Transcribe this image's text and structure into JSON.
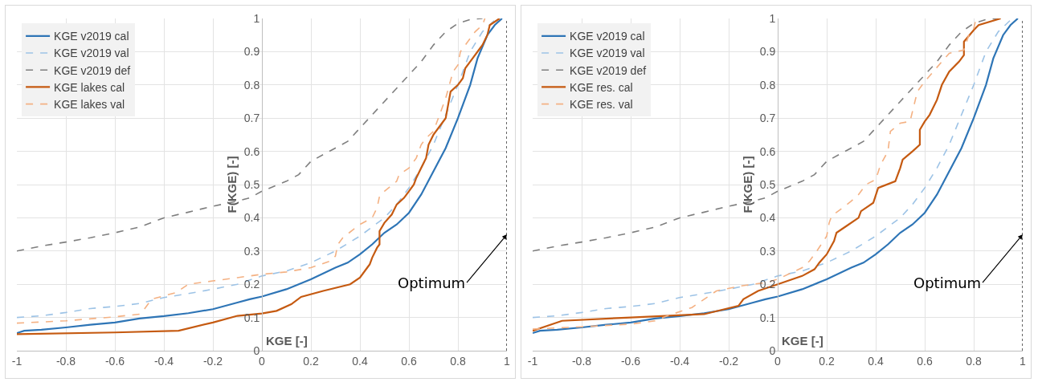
{
  "chart_data": [
    {
      "type": "line",
      "xlabel": "KGE [-]",
      "ylabel": "F(KGE) [-]",
      "xlim": [
        -1,
        1
      ],
      "ylim": [
        0,
        1
      ],
      "xticks": [
        -1,
        -0.8,
        -0.6,
        -0.4,
        -0.2,
        0,
        0.2,
        0.4,
        0.6,
        0.8,
        1
      ],
      "yticks": [
        0,
        0.1,
        0.2,
        0.3,
        0.4,
        0.5,
        0.6,
        0.7,
        0.8,
        0.9,
        1
      ],
      "grid": true,
      "legend": "top left",
      "marker": "none",
      "ref_lines": [
        {
          "axis": "x",
          "value": 1,
          "color": "#000000",
          "line_style": "dotted"
        }
      ],
      "annotations": [
        {
          "text": "Optimum",
          "x": 1,
          "y": 0.35
        }
      ],
      "series": [
        {
          "name": "KGE v2019 cal",
          "color": "#2e75b6",
          "line_style": "solid",
          "x": [
            -1,
            -0.97,
            -0.9,
            -0.8,
            -0.7,
            -0.6,
            -0.5,
            -0.4,
            -0.3,
            -0.2,
            -0.1,
            -0.05,
            0,
            0.1,
            0.2,
            0.3,
            0.35,
            0.4,
            0.45,
            0.5,
            0.55,
            0.6,
            0.65,
            0.7,
            0.75,
            0.8,
            0.85,
            0.88,
            0.92,
            0.95,
            0.98
          ],
          "values": [
            0.053,
            0.06,
            0.063,
            0.07,
            0.078,
            0.085,
            0.097,
            0.104,
            0.113,
            0.125,
            0.145,
            0.155,
            0.163,
            0.185,
            0.215,
            0.25,
            0.265,
            0.29,
            0.32,
            0.355,
            0.38,
            0.415,
            0.47,
            0.54,
            0.61,
            0.7,
            0.8,
            0.88,
            0.95,
            0.98,
            1
          ]
        },
        {
          "name": "KGE v2019 val",
          "color": "#9dc3e6",
          "line_style": "dashed",
          "x": [
            -1,
            -0.9,
            -0.8,
            -0.7,
            -0.6,
            -0.5,
            -0.4,
            -0.3,
            -0.2,
            -0.1,
            0,
            0.1,
            0.2,
            0.3,
            0.4,
            0.5,
            0.55,
            0.6,
            0.65,
            0.7,
            0.75,
            0.8,
            0.85,
            0.9,
            0.95,
            0.97
          ],
          "values": [
            0.1,
            0.105,
            0.115,
            0.127,
            0.133,
            0.142,
            0.16,
            0.172,
            0.185,
            0.2,
            0.225,
            0.24,
            0.265,
            0.3,
            0.345,
            0.4,
            0.44,
            0.49,
            0.55,
            0.62,
            0.71,
            0.8,
            0.9,
            0.96,
            0.995,
            1
          ]
        },
        {
          "name": "KGE v2019 def",
          "color": "#7f7f7f",
          "line_style": "dashed",
          "x": [
            -1,
            -0.9,
            -0.8,
            -0.7,
            -0.6,
            -0.5,
            -0.4,
            -0.3,
            -0.2,
            -0.1,
            -0.05,
            0,
            0.1,
            0.15,
            0.2,
            0.3,
            0.35,
            0.4,
            0.45,
            0.5,
            0.55,
            0.6,
            0.65,
            0.7,
            0.75,
            0.8,
            0.85,
            0.9
          ],
          "values": [
            0.3,
            0.315,
            0.327,
            0.34,
            0.355,
            0.372,
            0.4,
            0.417,
            0.435,
            0.45,
            0.46,
            0.48,
            0.51,
            0.53,
            0.57,
            0.61,
            0.63,
            0.67,
            0.71,
            0.75,
            0.79,
            0.83,
            0.87,
            0.92,
            0.96,
            0.985,
            0.997,
            1
          ]
        },
        {
          "name": "KGE lakes cal",
          "color": "#c55a11",
          "line_style": "solid",
          "x": [
            -1,
            -0.6,
            -0.34,
            -0.2,
            -0.1,
            0,
            0.06,
            0.12,
            0.16,
            0.25,
            0.36,
            0.4,
            0.43,
            0.44,
            0.45,
            0.47,
            0.48,
            0.48,
            0.5,
            0.53,
            0.55,
            0.58,
            0.6,
            0.62,
            0.63,
            0.65,
            0.67,
            0.68,
            0.7,
            0.73,
            0.75,
            0.77,
            0.8,
            0.82,
            0.83,
            0.86,
            0.89,
            0.9,
            0.92,
            0.93,
            0.97
          ],
          "values": [
            0.05,
            0.055,
            0.06,
            0.085,
            0.105,
            0.112,
            0.12,
            0.14,
            0.162,
            0.18,
            0.2,
            0.22,
            0.25,
            0.26,
            0.28,
            0.31,
            0.32,
            0.36,
            0.385,
            0.41,
            0.44,
            0.46,
            0.48,
            0.5,
            0.52,
            0.55,
            0.58,
            0.62,
            0.65,
            0.68,
            0.7,
            0.78,
            0.8,
            0.82,
            0.85,
            0.88,
            0.91,
            0.92,
            0.95,
            0.98,
            1
          ]
        },
        {
          "name": "KGE lakes val",
          "color": "#f4b183",
          "line_style": "dashed",
          "x": [
            -1,
            -0.8,
            -0.6,
            -0.5,
            -0.48,
            -0.45,
            -0.35,
            -0.3,
            -0.2,
            -0.1,
            0,
            0.1,
            0.2,
            0.28,
            0.3,
            0.31,
            0.33,
            0.4,
            0.45,
            0.47,
            0.48,
            0.5,
            0.55,
            0.56,
            0.6,
            0.63,
            0.65,
            0.67,
            0.7,
            0.72,
            0.75,
            0.78,
            0.8,
            0.81,
            0.84,
            0.87,
            0.9,
            0.91
          ],
          "values": [
            0.083,
            0.09,
            0.102,
            0.11,
            0.125,
            0.155,
            0.175,
            0.2,
            0.21,
            0.22,
            0.23,
            0.237,
            0.25,
            0.27,
            0.285,
            0.32,
            0.34,
            0.38,
            0.4,
            0.43,
            0.465,
            0.48,
            0.51,
            0.53,
            0.55,
            0.58,
            0.62,
            0.64,
            0.66,
            0.7,
            0.76,
            0.84,
            0.86,
            0.9,
            0.93,
            0.96,
            0.98,
            1
          ]
        }
      ]
    },
    {
      "type": "line",
      "xlabel": "KGE [-]",
      "ylabel": "F(KGE) [-]",
      "xlim": [
        -1,
        1
      ],
      "ylim": [
        0,
        1
      ],
      "xticks": [
        -1,
        -0.8,
        -0.6,
        -0.4,
        -0.2,
        0,
        0.2,
        0.4,
        0.6,
        0.8,
        1
      ],
      "yticks": [
        0,
        0.1,
        0.2,
        0.3,
        0.4,
        0.5,
        0.6,
        0.7,
        0.8,
        0.9,
        1
      ],
      "grid": true,
      "legend": "top left",
      "marker": "none",
      "ref_lines": [
        {
          "axis": "x",
          "value": 1,
          "color": "#000000",
          "line_style": "dotted"
        }
      ],
      "annotations": [
        {
          "text": "Optimum",
          "x": 1,
          "y": 0.35
        }
      ],
      "series": [
        {
          "name": "KGE v2019 cal",
          "color": "#2e75b6",
          "line_style": "solid",
          "x": [
            -1,
            -0.97,
            -0.9,
            -0.8,
            -0.7,
            -0.6,
            -0.5,
            -0.4,
            -0.3,
            -0.2,
            -0.1,
            -0.05,
            0,
            0.1,
            0.2,
            0.3,
            0.35,
            0.4,
            0.45,
            0.5,
            0.55,
            0.6,
            0.65,
            0.7,
            0.75,
            0.8,
            0.85,
            0.88,
            0.92,
            0.95,
            0.98
          ],
          "values": [
            0.053,
            0.06,
            0.063,
            0.07,
            0.078,
            0.085,
            0.097,
            0.104,
            0.113,
            0.125,
            0.145,
            0.155,
            0.163,
            0.185,
            0.215,
            0.25,
            0.265,
            0.29,
            0.32,
            0.355,
            0.38,
            0.415,
            0.47,
            0.54,
            0.61,
            0.7,
            0.8,
            0.88,
            0.95,
            0.98,
            1
          ]
        },
        {
          "name": "KGE v2019 val",
          "color": "#9dc3e6",
          "line_style": "dashed",
          "x": [
            -1,
            -0.9,
            -0.8,
            -0.7,
            -0.6,
            -0.5,
            -0.4,
            -0.3,
            -0.2,
            -0.1,
            0,
            0.1,
            0.2,
            0.3,
            0.4,
            0.5,
            0.55,
            0.6,
            0.65,
            0.7,
            0.75,
            0.8,
            0.85,
            0.9,
            0.95,
            0.97
          ],
          "values": [
            0.1,
            0.105,
            0.115,
            0.127,
            0.133,
            0.142,
            0.16,
            0.172,
            0.185,
            0.2,
            0.225,
            0.24,
            0.265,
            0.3,
            0.345,
            0.4,
            0.44,
            0.49,
            0.55,
            0.62,
            0.71,
            0.8,
            0.9,
            0.96,
            0.995,
            1
          ]
        },
        {
          "name": "KGE v2019 def",
          "color": "#7f7f7f",
          "line_style": "dashed",
          "x": [
            -1,
            -0.9,
            -0.8,
            -0.7,
            -0.6,
            -0.5,
            -0.4,
            -0.3,
            -0.2,
            -0.1,
            -0.05,
            0,
            0.1,
            0.15,
            0.2,
            0.3,
            0.35,
            0.4,
            0.45,
            0.5,
            0.55,
            0.6,
            0.65,
            0.7,
            0.75,
            0.8,
            0.85,
            0.9
          ],
          "values": [
            0.3,
            0.315,
            0.327,
            0.34,
            0.355,
            0.372,
            0.4,
            0.417,
            0.435,
            0.45,
            0.46,
            0.48,
            0.51,
            0.53,
            0.57,
            0.61,
            0.63,
            0.67,
            0.71,
            0.75,
            0.79,
            0.83,
            0.87,
            0.92,
            0.96,
            0.985,
            0.997,
            1
          ]
        },
        {
          "name": "KGE res. cal",
          "color": "#c55a11",
          "line_style": "solid",
          "x": [
            -1,
            -0.88,
            -0.6,
            -0.3,
            -0.16,
            -0.14,
            -0.08,
            0,
            0.1,
            0.15,
            0.17,
            0.2,
            0.23,
            0.24,
            0.28,
            0.33,
            0.34,
            0.39,
            0.41,
            0.48,
            0.5,
            0.51,
            0.55,
            0.58,
            0.58,
            0.6,
            0.62,
            0.65,
            0.67,
            0.7,
            0.74,
            0.76,
            0.76,
            0.8,
            0.82,
            0.91
          ],
          "values": [
            0.06,
            0.09,
            0.1,
            0.11,
            0.135,
            0.155,
            0.18,
            0.2,
            0.225,
            0.245,
            0.265,
            0.29,
            0.33,
            0.355,
            0.375,
            0.4,
            0.42,
            0.445,
            0.49,
            0.51,
            0.55,
            0.575,
            0.6,
            0.62,
            0.665,
            0.69,
            0.71,
            0.755,
            0.8,
            0.84,
            0.87,
            0.89,
            0.93,
            0.965,
            0.98,
            1
          ]
        },
        {
          "name": "KGE res. val",
          "color": "#f4b183",
          "line_style": "dashed",
          "x": [
            -1,
            -0.8,
            -0.6,
            -0.5,
            -0.45,
            -0.35,
            -0.3,
            -0.25,
            -0.15,
            -0.05,
            0,
            0.1,
            0.13,
            0.16,
            0.2,
            0.21,
            0.22,
            0.3,
            0.33,
            0.36,
            0.4,
            0.42,
            0.45,
            0.46,
            0.5,
            0.54,
            0.57,
            0.6,
            0.67,
            0.7,
            0.76,
            0.78,
            0.8,
            0.81
          ],
          "values": [
            0.065,
            0.072,
            0.08,
            0.09,
            0.105,
            0.13,
            0.155,
            0.18,
            0.195,
            0.205,
            0.215,
            0.25,
            0.27,
            0.3,
            0.345,
            0.385,
            0.405,
            0.45,
            0.47,
            0.5,
            0.515,
            0.56,
            0.6,
            0.66,
            0.685,
            0.69,
            0.78,
            0.81,
            0.87,
            0.895,
            0.905,
            0.95,
            0.97,
            1
          ]
        }
      ]
    }
  ]
}
